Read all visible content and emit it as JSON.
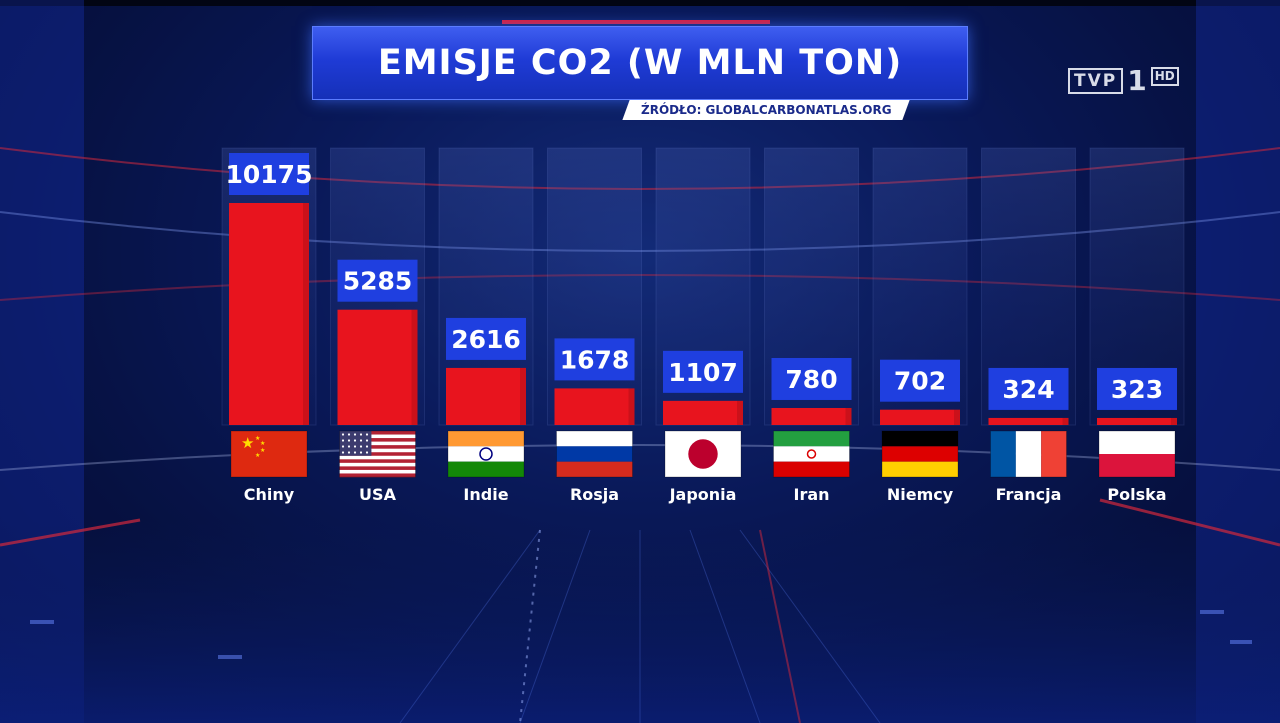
{
  "header": {
    "title": "EMISJE CO2 (W MLN TON)",
    "source": "ŹRÓDŁO: GLOBALCARBONATLAS.ORG"
  },
  "logo": {
    "tvp": "TVP",
    "one": "1",
    "hd": "HD"
  },
  "colors": {
    "bar": "#e8141e",
    "label_box": "#1f3fe0",
    "title_bar": "#2441dc",
    "text": "#ffffff"
  },
  "chart_data": {
    "type": "bar",
    "title": "EMISJE CO2 (W MLN TON)",
    "source": "ŹRÓDŁO: GLOBALCARBONATLAS.ORG",
    "categories": [
      "Chiny",
      "USA",
      "Indie",
      "Rosja",
      "Japonia",
      "Iran",
      "Niemcy",
      "Francja",
      "Polska"
    ],
    "values": [
      10175,
      5285,
      2616,
      1678,
      1107,
      780,
      702,
      324,
      323
    ],
    "value_labels": [
      "10175",
      "5285",
      "2616",
      "1678",
      "1107",
      "780",
      "702",
      "324",
      "323"
    ],
    "flags": [
      "china-flag-icon",
      "usa-flag-icon",
      "india-flag-icon",
      "russia-flag-icon",
      "japan-flag-icon",
      "iran-flag-icon",
      "germany-flag-icon",
      "france-flag-icon",
      "poland-flag-icon"
    ],
    "xlabel": "",
    "ylabel": "",
    "grid": false,
    "legend": "none"
  }
}
